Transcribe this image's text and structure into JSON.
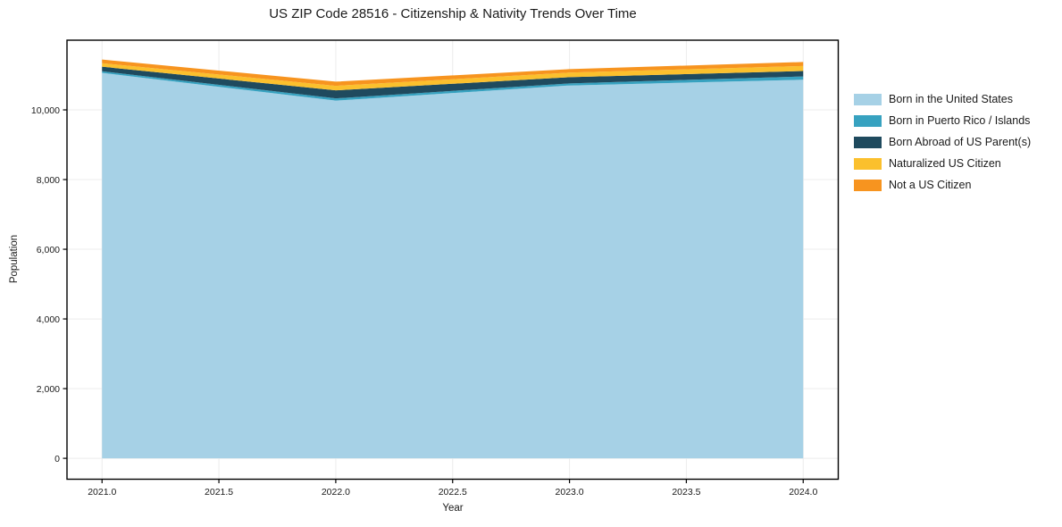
{
  "figure": {
    "title": "US ZIP Code 28516 - Citizenship & Nativity Trends Over Time",
    "xlabel": "Year",
    "ylabel": "Population"
  },
  "chart_data": {
    "type": "area",
    "stacked": true,
    "title": "US ZIP Code 28516 - Citizenship & Nativity Trends Over Time",
    "xlabel": "Year",
    "ylabel": "Population",
    "x": [
      2021,
      2022,
      2023,
      2024
    ],
    "series": [
      {
        "name": "Born in the United States",
        "color": "#A6D1E6",
        "values": [
          11060,
          10265,
          10700,
          10865
        ]
      },
      {
        "name": "Born in Puerto Rico / Islands",
        "color": "#37A2C0",
        "values": [
          50,
          65,
          60,
          95
        ]
      },
      {
        "name": "Born Abroad of US Parent(s)",
        "color": "#1F4A5E",
        "values": [
          130,
          230,
          180,
          155
        ]
      },
      {
        "name": "Naturalized US Citizen",
        "color": "#FBC02D",
        "values": [
          100,
          130,
          130,
          145
        ]
      },
      {
        "name": "Not a US Citizen",
        "color": "#F7941F",
        "values": [
          105,
          120,
          100,
          115
        ]
      }
    ],
    "totals": [
      11445,
      10810,
      11170,
      11375
    ],
    "xlim": [
      2020.85,
      2024.15
    ],
    "ylim": [
      -600,
      12000
    ],
    "xticks": {
      "values": [
        2021,
        2021.5,
        2022,
        2022.5,
        2023,
        2023.5,
        2024
      ],
      "labels": [
        "2021.0",
        "2021.5",
        "2022.0",
        "2022.5",
        "2023.0",
        "2023.5",
        "2024.0"
      ]
    },
    "yticks": {
      "values": [
        0,
        2000,
        4000,
        6000,
        8000,
        10000
      ],
      "labels": [
        "0",
        "2,000",
        "4,000",
        "6,000",
        "8,000",
        "10,000"
      ]
    },
    "grid": true,
    "legend_position": "right of plot, upper area, frameless"
  },
  "colors": {
    "background": "#ffffff",
    "grid": "#ececec",
    "spine": "#000000",
    "text": "#1a1a1a"
  }
}
